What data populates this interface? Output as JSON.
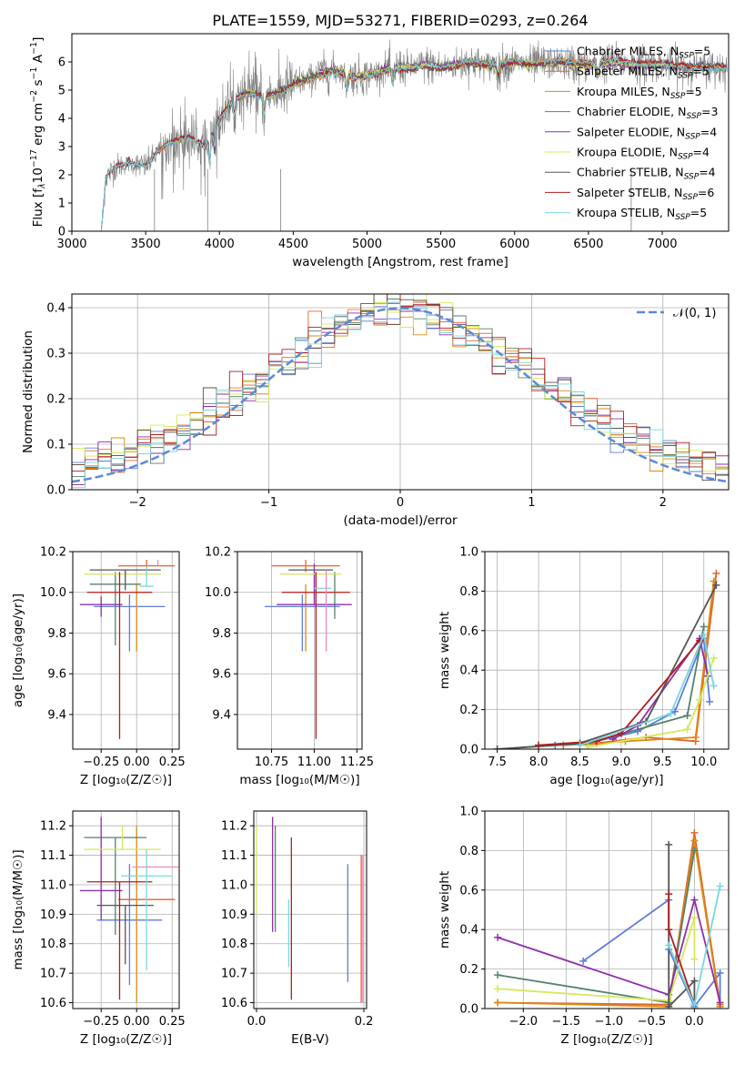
{
  "title": "PLATE=1559, MJD=53271, FIBERID=0293, z=0.264",
  "colors": {
    "Chabrier MILES": "#5b7fd6",
    "Salpeter MILES": "#e5632e",
    "Kroupa MILES": "#d98c12",
    "Chabrier ELODIE": "#55826a",
    "Salpeter ELODIE": "#8e2faa",
    "Kroupa ELODIE": "#d5e85a",
    "Chabrier STELIB": "#555555",
    "Salpeter STELIB": "#b01e1e",
    "Kroupa STELIB": "#7bd6dd",
    "pink": "#ee88bb",
    "data": "#808080",
    "gaussian": "#5b8ad6"
  },
  "chart_data": [
    {
      "type": "line",
      "panel": "spectrum",
      "title": "PLATE=1559, MJD=53271, FIBERID=0293, z=0.264",
      "xlabel": "wavelength [Angstrom, rest frame]",
      "ylabel_parts": [
        "Flux [f",
        "λ",
        "10",
        "−17",
        " erg cm",
        "−2",
        " s",
        "−1",
        " A",
        "−1",
        "]"
      ],
      "xlim": [
        3000,
        7450
      ],
      "ylim": [
        0,
        7
      ],
      "xticks": [
        "3000",
        "3500",
        "4000",
        "4500",
        "5000",
        "5500",
        "6000",
        "6500",
        "7000"
      ],
      "yticks": [
        "0",
        "1",
        "2",
        "3",
        "4",
        "5",
        "6"
      ],
      "continuum": {
        "x": [
          3200,
          3230,
          3300,
          3400,
          3500,
          3600,
          3700,
          3800,
          3900,
          4000,
          4100,
          4200,
          4300,
          4400,
          4500,
          4600,
          4700,
          4800,
          4900,
          5000,
          5100,
          5200,
          5300,
          5400,
          5500,
          5600,
          5700,
          5800,
          5900,
          6000,
          6100,
          6200,
          6300,
          6400,
          6500,
          6600,
          6700,
          6800,
          6900,
          7000,
          7100,
          7200,
          7300,
          7440
        ],
        "y": [
          0,
          1.9,
          2.3,
          2.4,
          2.3,
          2.9,
          3.2,
          3.3,
          3.0,
          4.0,
          4.7,
          4.9,
          4.8,
          4.9,
          5.2,
          5.4,
          5.6,
          5.7,
          5.5,
          5.5,
          5.7,
          5.8,
          5.8,
          5.9,
          5.8,
          5.9,
          6.0,
          5.9,
          5.9,
          6.0,
          5.9,
          5.95,
          6.0,
          5.9,
          5.9,
          5.95,
          6.0,
          5.9,
          5.9,
          5.9,
          5.85,
          5.8,
          5.8,
          5.8
        ]
      },
      "legend": {
        "placement": "upper right",
        "entries": [
          {
            "model": "Chabrier MILES",
            "nssp": "5"
          },
          {
            "model": "Salpeter MILES",
            "nssp": "5"
          },
          {
            "model": "Kroupa MILES",
            "nssp": "5"
          },
          {
            "model": "Chabrier ELODIE",
            "nssp": "3"
          },
          {
            "model": "Salpeter ELODIE",
            "nssp": "4"
          },
          {
            "model": "Kroupa ELODIE",
            "nssp": "4"
          },
          {
            "model": "Chabrier STELIB",
            "nssp": "4"
          },
          {
            "model": "Salpeter STELIB",
            "nssp": "6"
          },
          {
            "model": "Kroupa STELIB",
            "nssp": "5"
          }
        ]
      }
    },
    {
      "type": "histogram",
      "panel": "residuals",
      "xlabel": "(data-model)/error",
      "ylabel": "Normed distribution",
      "xlim": [
        -2.5,
        2.5
      ],
      "ylim": [
        0,
        0.43
      ],
      "xticks": [
        "−2",
        "−1",
        "0",
        "1",
        "2"
      ],
      "yticks": [
        "0.0",
        "0.1",
        "0.2",
        "0.3",
        "0.4"
      ],
      "bins": 50,
      "legend": {
        "placement": "upper right",
        "label": "𝒩(0, 1)"
      },
      "gaussian": {
        "mean": 0,
        "sigma": 1
      }
    },
    {
      "type": "errorbar",
      "panel": "age-Z",
      "xlabel": "Z [log₁₀(Z/Z☉)]",
      "ylabel": "age  [log₁₀(age/yr)]",
      "xlim": [
        -0.45,
        0.3
      ],
      "ylim": [
        9.23,
        10.2
      ],
      "xticks": [
        "−0.25",
        "0.00",
        "0.25"
      ],
      "yticks": [
        "9.4",
        "9.6",
        "9.8",
        "10.0",
        "10.2"
      ],
      "points": [
        {
          "model": "Chabrier MILES",
          "x": -0.05,
          "y": 9.93,
          "xerr": 0.25,
          "yerr": [
            0.22,
            0.06
          ]
        },
        {
          "model": "Salpeter MILES",
          "x": 0.07,
          "y": 10.13,
          "xerr": 0.2,
          "yerr": [
            0.03,
            0.03
          ]
        },
        {
          "model": "Kroupa MILES",
          "x": 0.0,
          "y": 9.71,
          "xerr": 0.0,
          "yerr": [
            0.0,
            0.33
          ]
        },
        {
          "model": "Chabrier ELODIE",
          "x": -0.15,
          "y": 10.04,
          "xerr": 0.18,
          "yerr": [
            0.3,
            0.06
          ]
        },
        {
          "model": "Salpeter ELODIE",
          "x": -0.25,
          "y": 9.94,
          "xerr": 0.15,
          "yerr": [
            0.06,
            0.04
          ]
        },
        {
          "model": "Kroupa ELODIE",
          "x": -0.1,
          "y": 10.09,
          "xerr": 0.27,
          "yerr": [
            0.0,
            0.0
          ]
        },
        {
          "model": "Chabrier STELIB",
          "x": -0.08,
          "y": 10.11,
          "xerr": 0.25,
          "yerr": [
            0.1,
            0.0
          ]
        },
        {
          "model": "Salpeter STELIB",
          "x": -0.12,
          "y": 10.0,
          "xerr": 0.23,
          "yerr": [
            0.72,
            0.1
          ]
        },
        {
          "model": "Kroupa STELIB",
          "x": 0.07,
          "y": 10.03,
          "xerr": 0.05,
          "yerr": [
            0.0,
            0.1
          ]
        },
        {
          "model": "pink",
          "x": 0.15,
          "y": 10.13,
          "xerr": 0.0,
          "yerr": [
            0.0,
            0.03
          ]
        }
      ]
    },
    {
      "type": "errorbar",
      "panel": "age-mass",
      "xlabel": "mass [log₁₀(M/M☉)]",
      "ylabel": "",
      "xlim": [
        10.55,
        11.28
      ],
      "ylim": [
        9.23,
        10.2
      ],
      "xticks": [
        "10.75",
        "11.00",
        "11.25"
      ],
      "yticks": [
        "9.4",
        "9.6",
        "9.8",
        "10.0",
        "10.2"
      ],
      "points": [
        {
          "model": "Chabrier MILES",
          "x": 10.93,
          "y": 9.93,
          "xerr": 0.22,
          "yerr": [
            0.22,
            0.06
          ]
        },
        {
          "model": "Salpeter MILES",
          "x": 10.95,
          "y": 10.13,
          "xerr": 0.2,
          "yerr": [
            0.03,
            0.03
          ]
        },
        {
          "model": "Kroupa MILES",
          "x": 10.95,
          "y": 9.71,
          "xerr": 0.0,
          "yerr": [
            0.0,
            0.33
          ]
        },
        {
          "model": "Chabrier ELODIE",
          "x": 11.12,
          "y": 9.87,
          "xerr": 0.0,
          "yerr": [
            0.0,
            0.23
          ]
        },
        {
          "model": "Salpeter ELODIE",
          "x": 11.0,
          "y": 9.94,
          "xerr": 0.22,
          "yerr": [
            0.0,
            0.2
          ]
        },
        {
          "model": "Kroupa ELODIE",
          "x": 10.98,
          "y": 10.09,
          "xerr": 0.18,
          "yerr": [
            0.0,
            0.0
          ]
        },
        {
          "model": "Chabrier STELIB",
          "x": 10.98,
          "y": 10.11,
          "xerr": 0.13,
          "yerr": [
            0.0,
            0.0
          ]
        },
        {
          "model": "Salpeter STELIB",
          "x": 11.01,
          "y": 10.0,
          "xerr": 0.2,
          "yerr": [
            0.72,
            0.1
          ]
        },
        {
          "model": "Kroupa STELIB",
          "x": 11.05,
          "y": 10.02,
          "xerr": 0.05,
          "yerr": [
            0.0,
            0.0
          ]
        },
        {
          "model": "pink",
          "x": 11.07,
          "y": 9.71,
          "xerr": 0.0,
          "yerr": [
            0.0,
            0.4
          ]
        }
      ]
    },
    {
      "type": "line",
      "panel": "weight-age",
      "xlabel": "age  [log₁₀(age/yr)]",
      "ylabel": "mass weight",
      "xlim": [
        7.35,
        10.3
      ],
      "ylim": [
        0,
        1.0
      ],
      "xticks": [
        "7.5",
        "8.0",
        "8.5",
        "9.0",
        "9.5",
        "10.0"
      ],
      "yticks": [
        "0.0",
        "0.2",
        "0.4",
        "0.6",
        "0.8",
        "1.0"
      ],
      "series": [
        {
          "model": "Chabrier MILES",
          "x": [
            8.2,
            8.6,
            9.2,
            9.65,
            10.0,
            10.07
          ],
          "y": [
            0.02,
            0.03,
            0.09,
            0.19,
            0.56,
            0.24
          ]
        },
        {
          "model": "Salpeter MILES",
          "x": [
            8.3,
            8.7,
            9.3,
            9.9,
            10.15
          ],
          "y": [
            0.02,
            0.03,
            0.06,
            0.04,
            0.89
          ]
        },
        {
          "model": "Kroupa MILES",
          "x": [
            8.5,
            9.05,
            9.9,
            10.12
          ],
          "y": [
            0.02,
            0.04,
            0.06,
            0.85
          ]
        },
        {
          "model": "Chabrier ELODIE",
          "x": [
            7.5,
            8.6,
            9.8,
            10.0
          ],
          "y": [
            0.0,
            0.03,
            0.17,
            0.62
          ]
        },
        {
          "model": "Salpeter ELODIE",
          "x": [
            8.9,
            9.2,
            9.95,
            10.05
          ],
          "y": [
            0.05,
            0.12,
            0.56,
            0.37
          ]
        },
        {
          "model": "Kroupa ELODIE",
          "x": [
            8.6,
            9.8,
            9.95,
            10.12
          ],
          "y": [
            0.01,
            0.1,
            0.25,
            0.46
          ]
        },
        {
          "model": "Chabrier STELIB",
          "x": [
            7.5,
            8.5,
            9.3,
            10.15
          ],
          "y": [
            0.0,
            0.03,
            0.14,
            0.83
          ]
        },
        {
          "model": "Salpeter STELIB",
          "x": [
            8.0,
            8.7,
            9.0,
            9.95
          ],
          "y": [
            0.02,
            0.04,
            0.08,
            0.55
          ]
        },
        {
          "model": "Kroupa STELIB",
          "x": [
            8.5,
            9.6,
            10.0,
            10.12
          ],
          "y": [
            0.02,
            0.18,
            0.58,
            0.32
          ]
        }
      ]
    },
    {
      "type": "errorbar",
      "panel": "mass-Z",
      "xlabel": "Z [log₁₀(Z/Z☉)]",
      "ylabel": "mass [log₁₀(M/M☉)]",
      "xlim": [
        -0.45,
        0.3
      ],
      "ylim": [
        10.58,
        11.25
      ],
      "xticks": [
        "−0.25",
        "0.00",
        "0.25"
      ],
      "yticks": [
        "10.6",
        "10.7",
        "10.8",
        "10.9",
        "11.0",
        "11.1",
        "11.2"
      ],
      "points": [
        {
          "model": "Chabrier MILES",
          "x": -0.05,
          "y": 10.88,
          "xerr": 0.23,
          "yerr": [
            0.22,
            0.19
          ]
        },
        {
          "model": "Salpeter MILES",
          "x": 0.07,
          "y": 10.95,
          "xerr": 0.2,
          "yerr": [
            0.0,
            0.0
          ]
        },
        {
          "model": "Kroupa MILES",
          "x": 0.0,
          "y": 10.9,
          "xerr": 0.0,
          "yerr": [
            0.3,
            0.3
          ]
        },
        {
          "model": "Chabrier ELODIE",
          "x": -0.15,
          "y": 11.16,
          "xerr": 0.22,
          "yerr": [
            0.33,
            0.0
          ]
        },
        {
          "model": "Salpeter ELODIE",
          "x": -0.25,
          "y": 10.98,
          "xerr": 0.15,
          "yerr": [
            0.1,
            0.25
          ]
        },
        {
          "model": "Kroupa ELODIE",
          "x": -0.1,
          "y": 11.12,
          "xerr": 0.27,
          "yerr": [
            0.0,
            0.08
          ]
        },
        {
          "model": "Chabrier STELIB",
          "x": -0.08,
          "y": 10.93,
          "xerr": 0.2,
          "yerr": [
            0.2,
            0.0
          ]
        },
        {
          "model": "Salpeter STELIB",
          "x": -0.12,
          "y": 11.01,
          "xerr": 0.23,
          "yerr": [
            0.4,
            0.0
          ]
        },
        {
          "model": "Kroupa STELIB",
          "x": 0.07,
          "y": 11.03,
          "xerr": 0.18,
          "yerr": [
            0.32,
            0.09
          ]
        },
        {
          "model": "pink",
          "x": 0.15,
          "y": 11.06,
          "xerr": 0.18,
          "yerr": [
            0.0,
            0.0
          ]
        }
      ]
    },
    {
      "type": "errorbar",
      "panel": "mass-EBV",
      "xlabel": "E(B-V)",
      "ylabel": "",
      "xlim": [
        -0.005,
        0.205
      ],
      "ylim": [
        10.58,
        11.25
      ],
      "xticks": [
        "0.0",
        "0.2"
      ],
      "yticks": [
        "10.6",
        "10.7",
        "10.8",
        "10.9",
        "11.0",
        "11.1",
        "11.2"
      ],
      "points": [
        {
          "model": "Kroupa ELODIE",
          "x": 0.0,
          "y": 11.05,
          "xerr": 0.0,
          "yerr": [
            0.15,
            0.15
          ]
        },
        {
          "model": "Salpeter ELODIE",
          "x": 0.03,
          "y": 11.03,
          "xerr": 0.0,
          "yerr": [
            0.19,
            0.2
          ]
        },
        {
          "model": "Chabrier ELODIE",
          "x": 0.035,
          "y": 11.02,
          "xerr": 0.0,
          "yerr": [
            0.18,
            0.18
          ]
        },
        {
          "model": "Kroupa STELIB",
          "x": 0.06,
          "y": 10.95,
          "xerr": 0.0,
          "yerr": [
            0.23,
            0.0
          ]
        },
        {
          "model": "Salpeter STELIB",
          "x": 0.065,
          "y": 10.89,
          "xerr": 0.0,
          "yerr": [
            0.28,
            0.27
          ]
        },
        {
          "model": "Chabrier MILES",
          "x": 0.17,
          "y": 10.87,
          "xerr": 0.0,
          "yerr": [
            0.2,
            0.2
          ]
        },
        {
          "model": "Salpeter MILES",
          "x": 0.195,
          "y": 10.85,
          "xerr": 0.0,
          "yerr": [
            0.25,
            0.25
          ]
        },
        {
          "model": "pink",
          "x": 0.198,
          "y": 10.85,
          "xerr": 0.0,
          "yerr": [
            0.25,
            0.25
          ]
        }
      ]
    },
    {
      "type": "line",
      "panel": "weight-Z",
      "xlabel": "Z [log₁₀(Z/Z☉)]",
      "ylabel": "mass weight",
      "xlim": [
        -2.45,
        0.4
      ],
      "ylim": [
        0,
        1.0
      ],
      "xticks": [
        "−2.0",
        "−1.5",
        "−1.0",
        "−0.5",
        "0.0"
      ],
      "yticks": [
        "0.0",
        "0.2",
        "0.4",
        "0.6",
        "0.8",
        "1.0"
      ],
      "series": [
        {
          "model": "Chabrier MILES",
          "x": [
            -1.3,
            -0.3,
            -0.3,
            0.0,
            0.3,
            0.3
          ],
          "y": [
            0.24,
            0.55,
            0.3,
            0.01,
            0.18,
            0.01
          ]
        },
        {
          "model": "Salpeter MILES",
          "x": [
            -2.3,
            -0.3,
            0.0,
            0.3
          ],
          "y": [
            0.03,
            0.02,
            0.89,
            0.02
          ]
        },
        {
          "model": "Kroupa MILES",
          "x": [
            -2.3,
            -0.3,
            0.0,
            0.3
          ],
          "y": [
            0.03,
            0.01,
            0.85,
            0.01
          ]
        },
        {
          "model": "Chabrier ELODIE",
          "x": [
            -2.3,
            -0.3,
            0.0
          ],
          "y": [
            0.17,
            0.03,
            0.8
          ]
        },
        {
          "model": "Salpeter ELODIE",
          "x": [
            -2.3,
            -0.3,
            0.0,
            0.3
          ],
          "y": [
            0.36,
            0.07,
            0.55,
            0.03
          ]
        },
        {
          "model": "Kroupa ELODIE",
          "x": [
            -2.3,
            -0.3,
            0.0,
            0.0
          ],
          "y": [
            0.1,
            0.04,
            0.46,
            0.25
          ]
        },
        {
          "model": "Chabrier STELIB",
          "x": [
            -0.3,
            -0.3,
            0.0,
            0.0
          ],
          "y": [
            0.83,
            0.01,
            0.14,
            0.0
          ]
        },
        {
          "model": "Salpeter STELIB",
          "x": [
            -0.3,
            -0.3,
            0.0
          ],
          "y": [
            0.58,
            0.4,
            0.02
          ]
        },
        {
          "model": "Kroupa STELIB",
          "x": [
            -0.3,
            0.0,
            0.3
          ],
          "y": [
            0.32,
            0.02,
            0.62
          ]
        }
      ]
    }
  ]
}
